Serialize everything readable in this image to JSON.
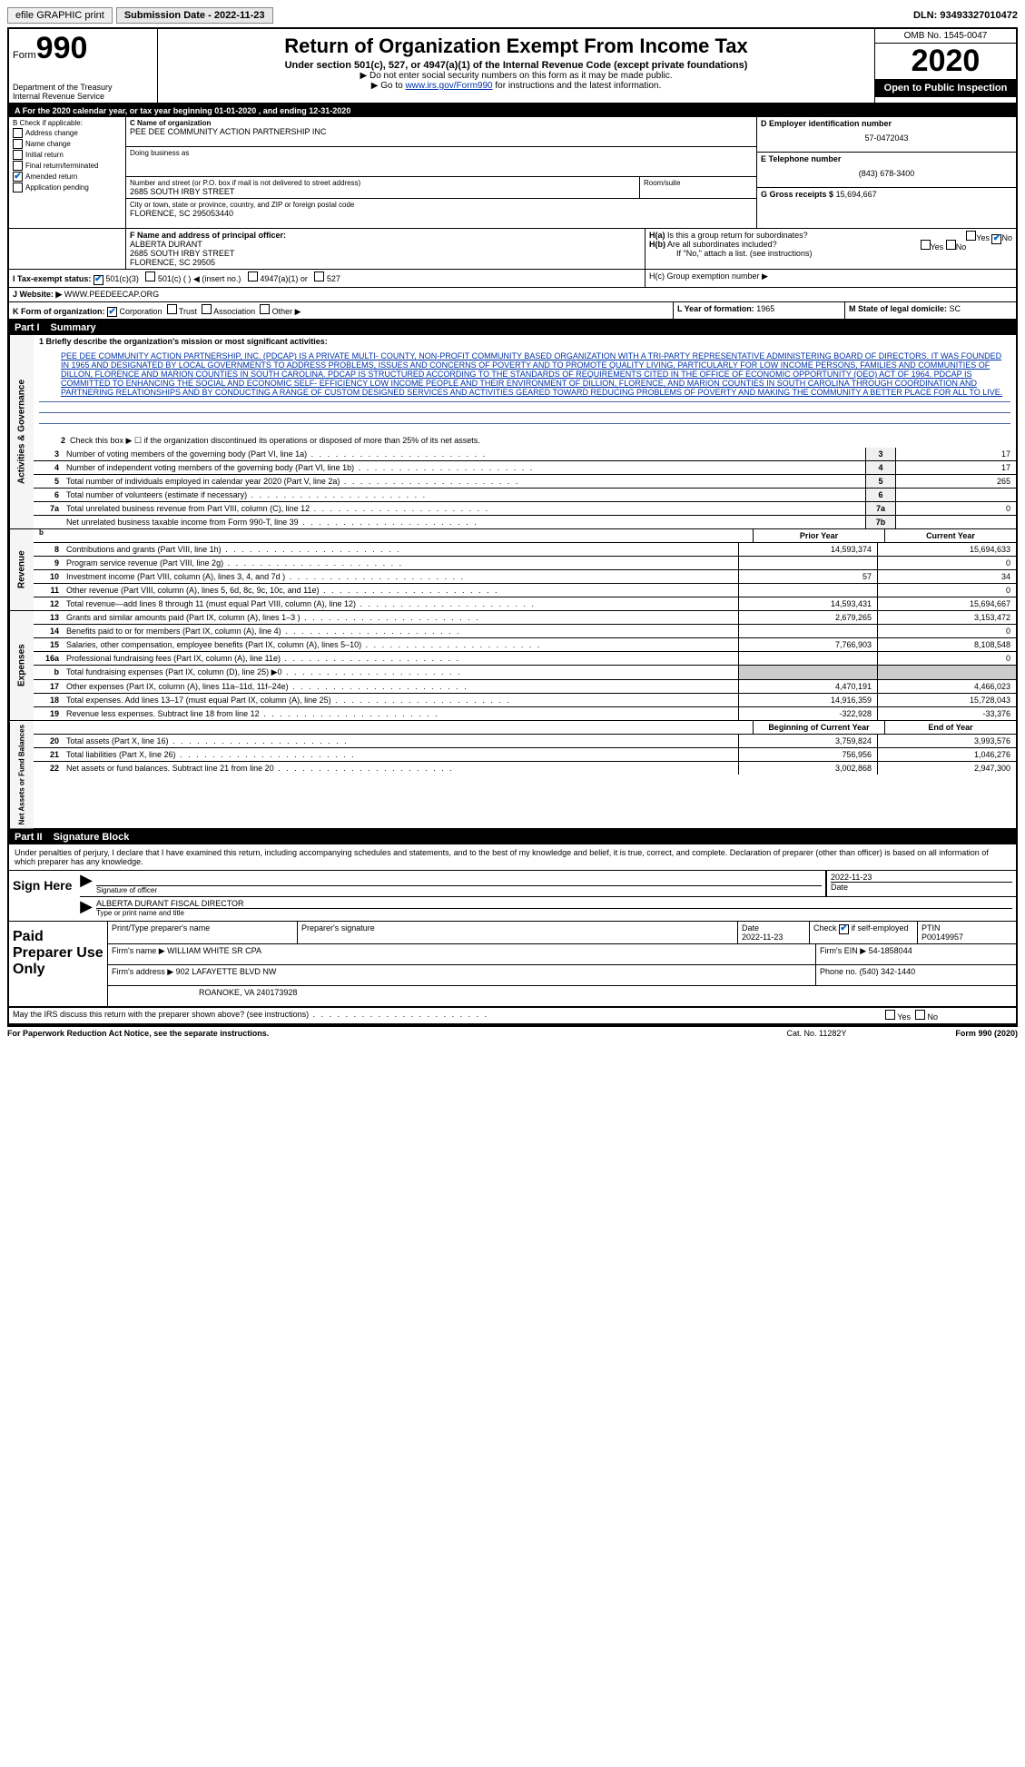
{
  "header_bar": {
    "efile": "efile GRAPHIC print",
    "submission_label": "Submission Date - 2022-11-23",
    "dln": "DLN: 93493327010472"
  },
  "form_id": {
    "prefix": "Form",
    "number": "990",
    "dept": "Department of the Treasury",
    "irs": "Internal Revenue Service"
  },
  "title_block": {
    "title": "Return of Organization Exempt From Income Tax",
    "subtitle": "Under section 501(c), 527, or 4947(a)(1) of the Internal Revenue Code (except private foundations)",
    "note1": "▶ Do not enter social security numbers on this form as it may be made public.",
    "note2_pre": "▶ Go to ",
    "note2_link": "www.irs.gov/Form990",
    "note2_post": " for instructions and the latest information."
  },
  "right_block": {
    "omb": "OMB No. 1545-0047",
    "year": "2020",
    "open_public": "Open to Public Inspection"
  },
  "year_line": "A For the 2020 calendar year, or tax year beginning 01-01-2020   , and ending 12-31-2020",
  "box_b": {
    "header": "B Check if applicable:",
    "items": [
      {
        "label": "Address change",
        "checked": false
      },
      {
        "label": "Name change",
        "checked": false
      },
      {
        "label": "Initial return",
        "checked": false
      },
      {
        "label": "Final return/terminated",
        "checked": false
      },
      {
        "label": "Amended return",
        "checked": true
      },
      {
        "label": "Application pending",
        "checked": false
      }
    ]
  },
  "box_c": {
    "name_label": "C Name of organization",
    "name": "PEE DEE COMMUNITY ACTION PARTNERSHIP INC",
    "dba_label": "Doing business as",
    "street_label": "Number and street (or P.O. box if mail is not delivered to street address)",
    "street": "2685 SOUTH IRBY STREET",
    "room_label": "Room/suite",
    "city_label": "City or town, state or province, country, and ZIP or foreign postal code",
    "city": "FLORENCE, SC  295053440"
  },
  "box_d": {
    "label": "D Employer identification number",
    "value": "57-0472043"
  },
  "box_e": {
    "label": "E Telephone number",
    "value": "(843) 678-3400"
  },
  "box_g": {
    "label": "G Gross receipts $",
    "value": "15,694,667"
  },
  "box_f": {
    "label": "F  Name and address of principal officer:",
    "name": "ALBERTA DURANT",
    "street": "2685 SOUTH IRBY STREET",
    "city": "FLORENCE, SC  29505"
  },
  "box_h": {
    "a_label": "H(a)  Is this a group return for subordinates?",
    "a_no_checked": true,
    "b_label": "H(b)  Are all subordinates included?",
    "b_note": "If \"No,\" attach a list. (see instructions)",
    "c_label": "H(c)  Group exemption number ▶"
  },
  "box_i": {
    "label": "I   Tax-exempt status:",
    "opt_501c3_checked": true,
    "opts": [
      "501(c)(3)",
      "501(c) (  ) ◀ (insert no.)",
      "4947(a)(1) or",
      "527"
    ]
  },
  "box_j": {
    "label": "J   Website: ▶",
    "value": "WWW.PEEDEECAP.ORG"
  },
  "box_k": {
    "label": "K Form of organization:",
    "corp_checked": true,
    "opts": [
      "Corporation",
      "Trust",
      "Association",
      "Other ▶"
    ]
  },
  "box_l": {
    "label": "L Year of formation:",
    "value": "1965"
  },
  "box_m": {
    "label": "M State of legal domicile:",
    "value": "SC"
  },
  "part1": {
    "header_part": "Part I",
    "header_title": "Summary"
  },
  "summary": {
    "q1_label": "1   Briefly describe the organization's mission or most significant activities:",
    "mission": "PEE DEE COMMUNITY ACTION PARTNERSHIP, INC. (PDCAP) IS A PRIVATE MULTI- COUNTY, NON-PROFIT COMMUNITY BASED ORGANIZATION WITH A TRI-PARTY REPRESENTATIVE ADMINISTERING BOARD OF DIRECTORS. IT WAS FOUNDED IN 1965 AND DESIGNATED BY LOCAL GOVERNMENTS TO ADDRESS PROBLEMS, ISSUES AND CONCERNS OF POVERTY AND TO PROMOTE QUALITY LIVING, PARTICULARLY FOR LOW INCOME PERSONS, FAMILIES AND COMMUNITIES OF DILLON, FLORENCE AND MARION COUNTIES IN SOUTH CAROLINA. PDCAP IS STRUCTURED ACCORDING TO THE STANDARDS OF REQUIREMENTS CITED IN THE OFFICE OF ECONOMIC OPPORTUNITY (OEO) ACT OF 1964. PDCAP IS COMMITTED TO ENHANCING THE SOCIAL AND ECONOMIC SELF- EFFICIENCY LOW INCOME PEOPLE AND THEIR ENVIRONMENT OF DILLION, FLORENCE, AND MARION COUNTIES IN SOUTH CAROLINA THROUGH COORDINATION AND PARTNERING RELATIONSHIPS AND BY CONDUCTING A RANGE OF CUSTOM DESIGNED SERVICES AND ACTIVITIES GEARED TOWARD REDUCING PROBLEMS OF POVERTY AND MAKING THE COMMUNITY A BETTER PLACE FOR ALL TO LIVE.",
    "q2": "Check this box ▶ ☐ if the organization discontinued its operations or disposed of more than 25% of its net assets.",
    "lines_single": [
      {
        "num": "3",
        "text": "Number of voting members of the governing body (Part VI, line 1a)",
        "box": "3",
        "val": "17"
      },
      {
        "num": "4",
        "text": "Number of independent voting members of the governing body (Part VI, line 1b)",
        "box": "4",
        "val": "17"
      },
      {
        "num": "5",
        "text": "Total number of individuals employed in calendar year 2020 (Part V, line 2a)",
        "box": "5",
        "val": "265"
      },
      {
        "num": "6",
        "text": "Total number of volunteers (estimate if necessary)",
        "box": "6",
        "val": ""
      },
      {
        "num": "7a",
        "text": "Total unrelated business revenue from Part VIII, column (C), line 12",
        "box": "7a",
        "val": "0"
      },
      {
        "num": "",
        "text": "Net unrelated business taxable income from Form 990-T, line 39",
        "box": "7b",
        "val": ""
      }
    ]
  },
  "revenue_header": {
    "prior": "Prior Year",
    "current": "Current Year"
  },
  "revenue": {
    "label": "Revenue",
    "lines": [
      {
        "num": "8",
        "text": "Contributions and grants (Part VIII, line 1h)",
        "prior": "14,593,374",
        "current": "15,694,633"
      },
      {
        "num": "9",
        "text": "Program service revenue (Part VIII, line 2g)",
        "prior": "",
        "current": "0"
      },
      {
        "num": "10",
        "text": "Investment income (Part VIII, column (A), lines 3, 4, and 7d )",
        "prior": "57",
        "current": "34"
      },
      {
        "num": "11",
        "text": "Other revenue (Part VIII, column (A), lines 5, 6d, 8c, 9c, 10c, and 11e)",
        "prior": "",
        "current": "0"
      },
      {
        "num": "12",
        "text": "Total revenue—add lines 8 through 11 (must equal Part VIII, column (A), line 12)",
        "prior": "14,593,431",
        "current": "15,694,667"
      }
    ]
  },
  "expenses": {
    "label": "Expenses",
    "lines": [
      {
        "num": "13",
        "text": "Grants and similar amounts paid (Part IX, column (A), lines 1–3 )",
        "prior": "2,679,265",
        "current": "3,153,472"
      },
      {
        "num": "14",
        "text": "Benefits paid to or for members (Part IX, column (A), line 4)",
        "prior": "",
        "current": "0"
      },
      {
        "num": "15",
        "text": "Salaries, other compensation, employee benefits (Part IX, column (A), lines 5–10)",
        "prior": "7,766,903",
        "current": "8,108,548"
      },
      {
        "num": "16a",
        "text": "Professional fundraising fees (Part IX, column (A), line 11e)",
        "prior": "",
        "current": "0"
      },
      {
        "num": "b",
        "text": "Total fundraising expenses (Part IX, column (D), line 25) ▶0",
        "prior": "GREY",
        "current": "GREY"
      },
      {
        "num": "17",
        "text": "Other expenses (Part IX, column (A), lines 11a–11d, 11f–24e)",
        "prior": "4,470,191",
        "current": "4,466,023"
      },
      {
        "num": "18",
        "text": "Total expenses. Add lines 13–17 (must equal Part IX, column (A), line 25)",
        "prior": "14,916,359",
        "current": "15,728,043"
      },
      {
        "num": "19",
        "text": "Revenue less expenses. Subtract line 18 from line 12",
        "prior": "-322,928",
        "current": "-33,376"
      }
    ]
  },
  "netassets_header": {
    "beg": "Beginning of Current Year",
    "end": "End of Year"
  },
  "netassets": {
    "label": "Net Assets or Fund Balances",
    "lines": [
      {
        "num": "20",
        "text": "Total assets (Part X, line 16)",
        "prior": "3,759,824",
        "current": "3,993,576"
      },
      {
        "num": "21",
        "text": "Total liabilities (Part X, line 26)",
        "prior": "756,956",
        "current": "1,046,276"
      },
      {
        "num": "22",
        "text": "Net assets or fund balances. Subtract line 21 from line 20",
        "prior": "3,002,868",
        "current": "2,947,300"
      }
    ]
  },
  "part2": {
    "header_part": "Part II",
    "header_title": "Signature Block"
  },
  "penalties": "Under penalties of perjury, I declare that I have examined this return, including accompanying schedules and statements, and to the best of my knowledge and belief, it is true, correct, and complete. Declaration of preparer (other than officer) is based on all information of which preparer has any knowledge.",
  "sign_here": {
    "label": "Sign Here",
    "sig_label": "Signature of officer",
    "date_label": "Date",
    "date": "2022-11-23",
    "name_line": "ALBERTA DURANT  FISCAL DIRECTOR",
    "name_label": "Type or print name and title"
  },
  "preparer": {
    "label": "Paid Preparer Use Only",
    "print_name_label": "Print/Type preparer's name",
    "sig_label": "Preparer's signature",
    "date_label": "Date",
    "date": "2022-11-23",
    "check_label": "Check ☑ if self-employed",
    "ptin_label": "PTIN",
    "ptin": "P00149957",
    "firm_name_label": "Firm's name    ▶",
    "firm_name": "WILLIAM WHITE SR CPA",
    "firm_ein_label": "Firm's EIN ▶",
    "firm_ein": "54-1858044",
    "firm_addr_label": "Firm's address ▶",
    "firm_addr1": "902 LAFAYETTE BLVD NW",
    "firm_addr2": "ROANOKE, VA  240173928",
    "phone_label": "Phone no.",
    "phone": "(540) 342-1440"
  },
  "irs_discuss": "May the IRS discuss this return with the preparer shown above? (see instructions)",
  "footer": {
    "left": "For Paperwork Reduction Act Notice, see the separate instructions.",
    "center": "Cat. No. 11282Y",
    "right": "Form 990 (2020)"
  }
}
